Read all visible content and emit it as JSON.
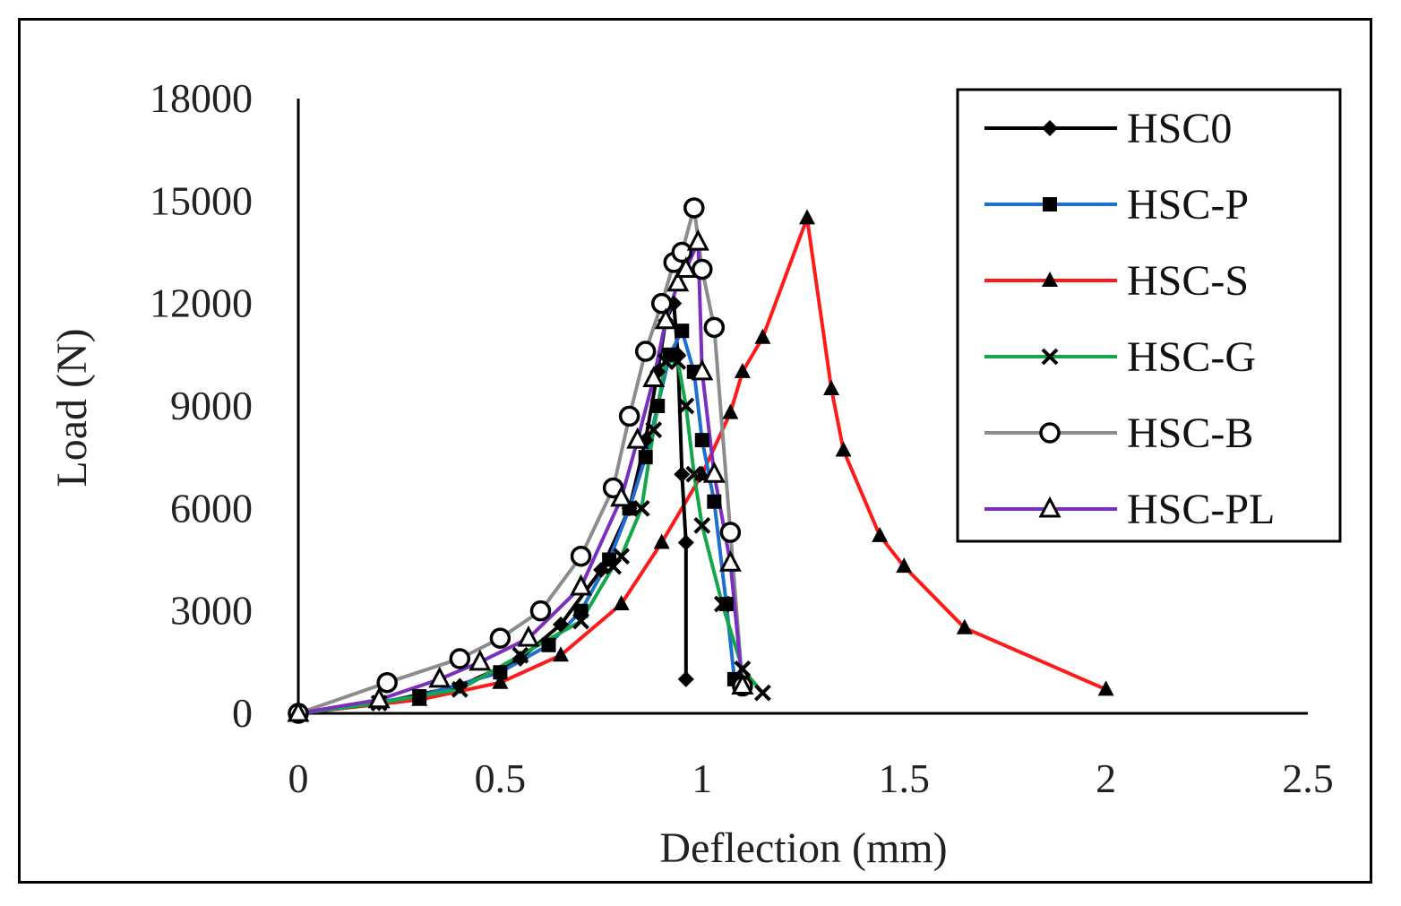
{
  "chart_data": {
    "type": "line",
    "title": "",
    "xlabel": "Deflection (mm)",
    "ylabel": "Load (N)",
    "xlim": [
      0,
      2.5
    ],
    "ylim": [
      0,
      18000
    ],
    "xticks": [
      0,
      0.5,
      1,
      1.5,
      2,
      2.5
    ],
    "xtick_labels": [
      "0",
      "0.5",
      "1",
      "1.5",
      "2",
      "2.5"
    ],
    "yticks": [
      0,
      3000,
      6000,
      9000,
      12000,
      15000,
      18000
    ],
    "ytick_labels": [
      "0",
      "3000",
      "6000",
      "9000",
      "12000",
      "15000",
      "18000"
    ],
    "legend_position": "top-right",
    "series": [
      {
        "name": "HSC0",
        "color": "#000000",
        "marker": "diamond",
        "x": [
          0,
          0.2,
          0.4,
          0.55,
          0.65,
          0.75,
          0.82,
          0.86,
          0.89,
          0.91,
          0.93,
          0.94,
          0.95,
          0.96,
          0.96
        ],
        "y": [
          0,
          300,
          800,
          1600,
          2600,
          4200,
          6000,
          8000,
          10000,
          11500,
          12000,
          10500,
          7000,
          5000,
          1000
        ]
      },
      {
        "name": "HSC-P",
        "color": "#1f6fd1",
        "marker": "square",
        "x": [
          0,
          0.3,
          0.5,
          0.62,
          0.7,
          0.77,
          0.82,
          0.86,
          0.89,
          0.92,
          0.95,
          0.98,
          1.0,
          1.03,
          1.06,
          1.08,
          1.1
        ],
        "y": [
          0,
          500,
          1200,
          2000,
          3000,
          4500,
          6000,
          7500,
          9000,
          10500,
          11200,
          10000,
          8000,
          6200,
          3200,
          1000,
          900
        ]
      },
      {
        "name": "HSC-S",
        "color": "#ff1a1a",
        "marker": "triangle",
        "x": [
          0,
          0.3,
          0.5,
          0.65,
          0.8,
          0.9,
          1.0,
          1.07,
          1.1,
          1.15,
          1.26,
          1.32,
          1.35,
          1.44,
          1.5,
          1.65,
          2.0
        ],
        "y": [
          0,
          400,
          900,
          1700,
          3200,
          5000,
          7000,
          8800,
          10000,
          11000,
          14500,
          9500,
          7700,
          5200,
          4300,
          2500,
          700
        ]
      },
      {
        "name": "HSC-G",
        "color": "#13a64b",
        "marker": "x",
        "x": [
          0,
          0.2,
          0.4,
          0.55,
          0.7,
          0.78,
          0.8,
          0.85,
          0.88,
          0.91,
          0.94,
          0.96,
          0.98,
          1.0,
          1.05,
          1.1,
          1.15
        ],
        "y": [
          0,
          300,
          700,
          1700,
          2700,
          4300,
          4600,
          6000,
          8300,
          10300,
          10300,
          9000,
          7000,
          5500,
          3200,
          1300,
          600
        ]
      },
      {
        "name": "HSC-B",
        "color": "#8c8c8c",
        "marker": "circle",
        "x": [
          0,
          0.22,
          0.4,
          0.5,
          0.6,
          0.7,
          0.78,
          0.82,
          0.86,
          0.9,
          0.93,
          0.95,
          0.98,
          1.0,
          1.03,
          1.07,
          1.1
        ],
        "y": [
          0,
          900,
          1600,
          2200,
          3000,
          4600,
          6600,
          8700,
          10600,
          12000,
          13200,
          13500,
          14800,
          13000,
          11300,
          5300,
          800
        ]
      },
      {
        "name": "HSC-PL",
        "color": "#7a2fbf",
        "marker": "triangle-open",
        "x": [
          0,
          0.2,
          0.35,
          0.45,
          0.57,
          0.7,
          0.8,
          0.84,
          0.88,
          0.91,
          0.94,
          0.96,
          0.99,
          1.0,
          1.03,
          1.07,
          1.1
        ],
        "y": [
          0,
          400,
          1000,
          1500,
          2200,
          3700,
          6300,
          8000,
          9800,
          11500,
          12600,
          13000,
          13800,
          10000,
          7000,
          4400,
          800
        ]
      }
    ]
  }
}
